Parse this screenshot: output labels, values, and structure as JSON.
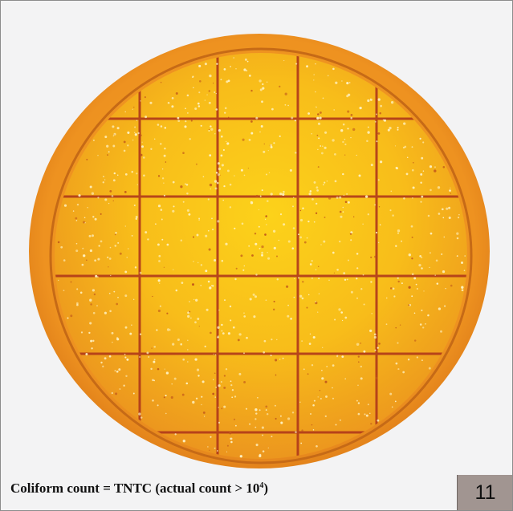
{
  "caption": {
    "prefix": "Coliform count = TNTC (actual count > 10",
    "exponent": "4",
    "suffix": ")"
  },
  "page_badge": "11",
  "colors": {
    "background": "#f3f3f4",
    "plate_rim": "#e58418",
    "plate_medium": "#f7b81a",
    "grid_lines": "#b0391a",
    "badge": "#a19591"
  }
}
